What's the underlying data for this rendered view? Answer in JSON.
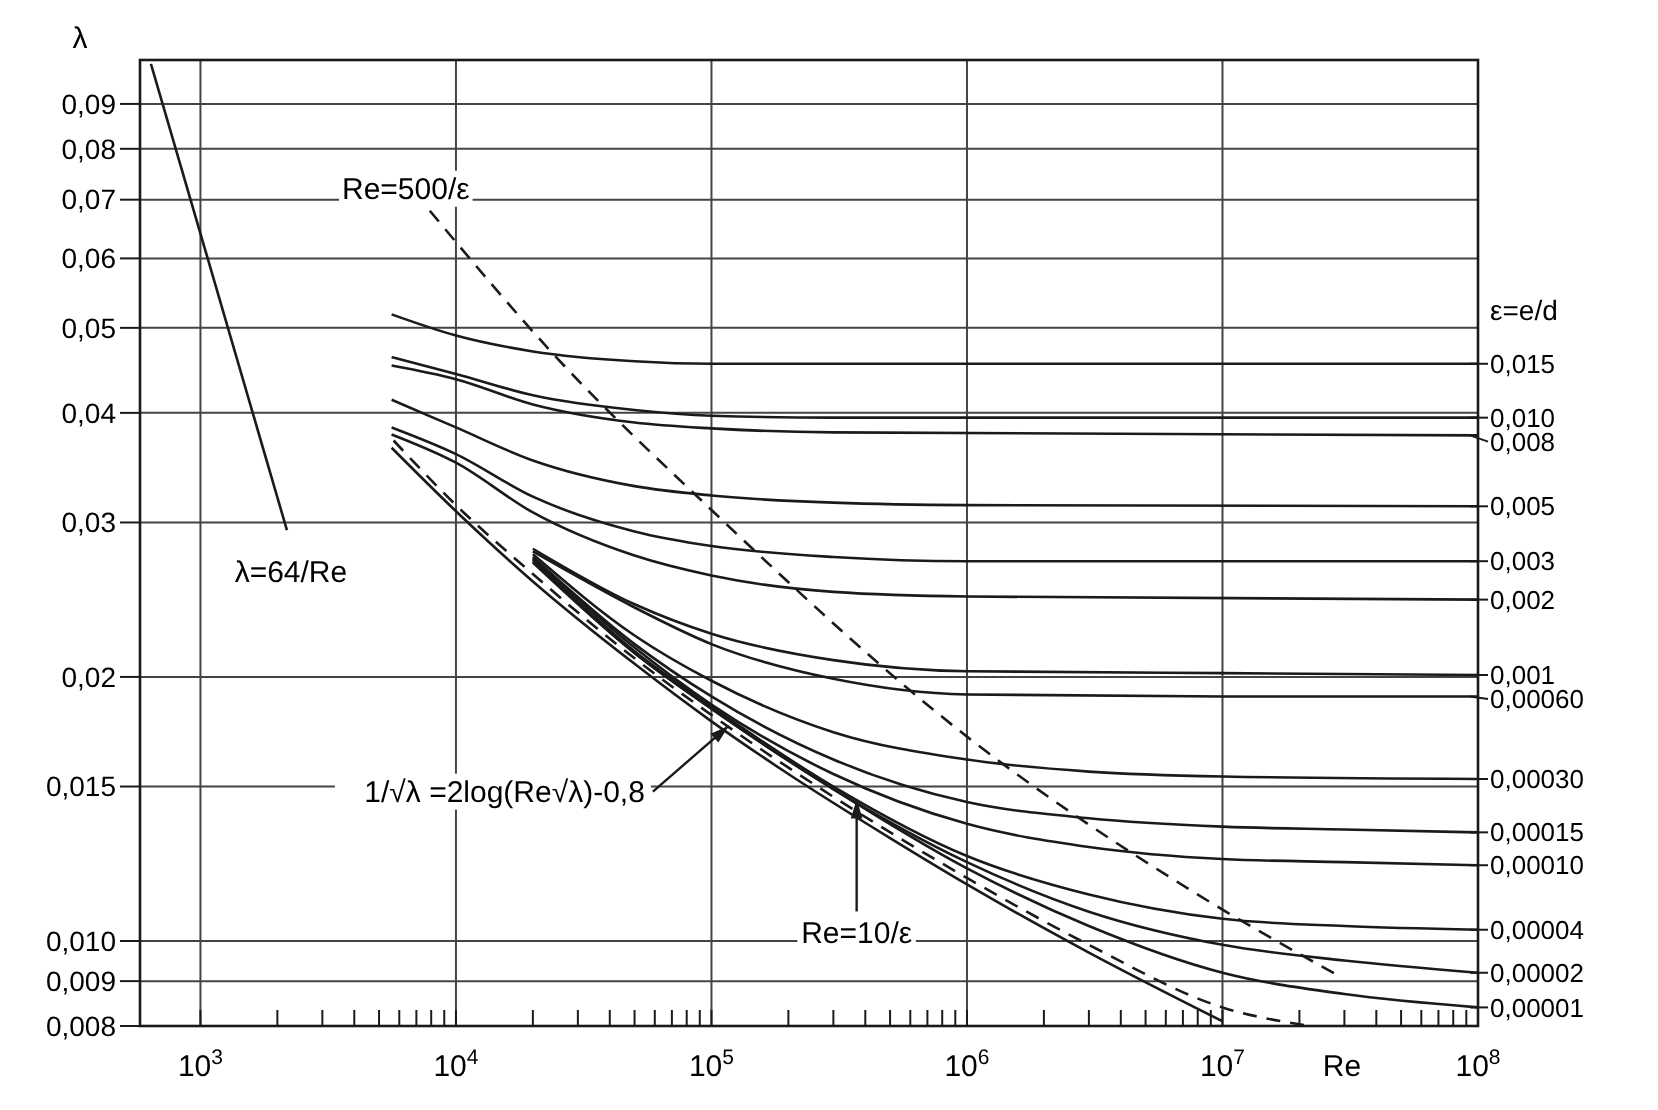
{
  "chart_data": {
    "type": "line",
    "xlabel": "Re",
    "ylabel": "λ",
    "legend_title": "ε=e/d",
    "legend": "right",
    "grid": true,
    "log": "xy",
    "xlim": [
      580,
      100000000
    ],
    "ylim": [
      0.008,
      0.101
    ],
    "xticks": [
      {
        "value": 1000,
        "label": "10$^{3}$"
      },
      {
        "value": 10000,
        "label": "10$^{4}$"
      },
      {
        "value": 100000,
        "label": "10$^{5}$"
      },
      {
        "value": 1000000,
        "label": "10$^{6}$"
      },
      {
        "value": 10000000,
        "label": "10$^{7}$"
      },
      {
        "value": 100000000,
        "label": "10$^{8}$"
      },
      {
        "value": 2000,
        "label": null
      },
      {
        "value": 3000,
        "label": null
      },
      {
        "value": 4000,
        "label": null
      },
      {
        "value": 5000,
        "label": null
      },
      {
        "value": 6000,
        "label": null
      },
      {
        "value": 7000,
        "label": null
      },
      {
        "value": 8000,
        "label": null
      },
      {
        "value": 9000,
        "label": null
      },
      {
        "value": 20000,
        "label": null
      },
      {
        "value": 30000,
        "label": null
      },
      {
        "value": 40000,
        "label": null
      },
      {
        "value": 50000,
        "label": null
      },
      {
        "value": 60000,
        "label": null
      },
      {
        "value": 70000,
        "label": null
      },
      {
        "value": 80000,
        "label": null
      },
      {
        "value": 90000,
        "label": null
      },
      {
        "value": 200000,
        "label": null
      },
      {
        "value": 300000,
        "label": null
      },
      {
        "value": 400000,
        "label": null
      },
      {
        "value": 500000,
        "label": null
      },
      {
        "value": 600000,
        "label": null
      },
      {
        "value": 700000,
        "label": null
      },
      {
        "value": 800000,
        "label": null
      },
      {
        "value": 900000,
        "label": null
      },
      {
        "value": 2000000,
        "label": null
      },
      {
        "value": 3000000,
        "label": null
      },
      {
        "value": 4000000,
        "label": null
      },
      {
        "value": 5000000,
        "label": null
      },
      {
        "value": 6000000,
        "label": null
      },
      {
        "value": 7000000,
        "label": null
      },
      {
        "value": 8000000,
        "label": null
      },
      {
        "value": 9000000,
        "label": null
      },
      {
        "value": 20000000,
        "label": null
      },
      {
        "value": 30000000,
        "label": null
      },
      {
        "value": 40000000,
        "label": null
      },
      {
        "value": 50000000,
        "label": null
      },
      {
        "value": 60000000,
        "label": null
      },
      {
        "value": 70000000,
        "label": null
      },
      {
        "value": 80000000,
        "label": null
      },
      {
        "value": 90000000,
        "label": null
      }
    ],
    "yticks": [
      {
        "value": 0.008,
        "label": "0,008"
      },
      {
        "value": 0.009,
        "label": "0,009"
      },
      {
        "value": 0.01,
        "label": "0,010"
      },
      {
        "value": 0.015,
        "label": "0,015"
      },
      {
        "value": 0.02,
        "label": "0,02"
      },
      {
        "value": 0.03,
        "label": "0,03"
      },
      {
        "value": 0.04,
        "label": "0,04"
      },
      {
        "value": 0.05,
        "label": "0,05"
      },
      {
        "value": 0.06,
        "label": "0,06"
      },
      {
        "value": 0.07,
        "label": "0,07"
      },
      {
        "value": 0.08,
        "label": "0,08"
      },
      {
        "value": 0.09,
        "label": "0,09"
      }
    ],
    "series": [
      {
        "color": "#1a1a1a",
        "line_style": "solid",
        "x": [
          640,
          2180
        ],
        "values": [
          0.1,
          0.0294
        ]
      },
      {
        "color": "#1a1a1a",
        "line_style": "dashed",
        "x": [
          7900,
          24000,
          100000,
          1000000,
          7600000,
          29000000
        ],
        "values": [
          0.068,
          0.0467,
          0.031,
          0.0171,
          0.0114,
          0.0091
        ]
      },
      {
        "name": "0,015",
        "color": "#1a1a1a",
        "x": [
          5600,
          10000,
          20000,
          50000,
          100000,
          300000,
          100000000
        ],
        "values": [
          0.0518,
          0.049,
          0.047,
          0.0458,
          0.0455,
          0.0455,
          0.0455
        ]
      },
      {
        "name": "0,010",
        "color": "#1a1a1a",
        "x": [
          5600,
          10000,
          20000,
          50000,
          100000,
          300000,
          100000000
        ],
        "values": [
          0.0463,
          0.0443,
          0.0419,
          0.0403,
          0.0397,
          0.0395,
          0.0395
        ]
      },
      {
        "name": "0,008",
        "color": "#1a1a1a",
        "x": [
          5600,
          10000,
          20000,
          50000,
          100000,
          300000,
          100000000
        ],
        "values": [
          0.0453,
          0.0437,
          0.0409,
          0.039,
          0.0384,
          0.038,
          0.0377
        ]
      },
      {
        "name": "0,005",
        "color": "#1a1a1a",
        "x": [
          5600,
          10000,
          20000,
          50000,
          100000,
          300000,
          1000000,
          100000000
        ],
        "values": [
          0.0414,
          0.0385,
          0.0353,
          0.033,
          0.0322,
          0.0316,
          0.0314,
          0.0313
        ]
      },
      {
        "name": "0,003",
        "color": "#1a1a1a",
        "x": [
          5600,
          10000,
          20000,
          50000,
          100000,
          300000,
          1000000,
          100000000
        ],
        "values": [
          0.0385,
          0.0359,
          0.0321,
          0.0293,
          0.0282,
          0.0274,
          0.0271,
          0.0271
        ]
      },
      {
        "name": "0,002",
        "color": "#1a1a1a",
        "x": [
          5600,
          10000,
          20000,
          50000,
          100000,
          300000,
          1000000,
          100000000
        ],
        "values": [
          0.0378,
          0.0351,
          0.0308,
          0.0275,
          0.0261,
          0.025,
          0.0247,
          0.0245
        ]
      },
      {
        "name": "0,001",
        "color": "#1a1a1a",
        "x": [
          20000,
          50000,
          100000,
          300000,
          1000000,
          10000000,
          100000000
        ],
        "values": [
          0.028,
          0.0242,
          0.0224,
          0.0209,
          0.0203,
          0.0202,
          0.0201
        ]
      },
      {
        "name": "0,00060",
        "color": "#1a1a1a",
        "x": [
          20000,
          50000,
          100000,
          300000,
          1000000,
          10000000,
          100000000
        ],
        "values": [
          0.0278,
          0.024,
          0.0218,
          0.0199,
          0.0191,
          0.019,
          0.019
        ]
      },
      {
        "name": "0,00030",
        "color": "#1a1a1a",
        "x": [
          20000,
          50000,
          100000,
          300000,
          1000000,
          3000000,
          10000000,
          100000000
        ],
        "values": [
          0.0276,
          0.0223,
          0.0198,
          0.0173,
          0.0161,
          0.0156,
          0.0154,
          0.0153
        ]
      },
      {
        "name": "0,00015",
        "color": "#1a1a1a",
        "x": [
          20000,
          50000,
          100000,
          300000,
          1000000,
          3000000,
          10000000,
          30000000,
          100000000
        ],
        "values": [
          0.0274,
          0.0218,
          0.019,
          0.0161,
          0.0144,
          0.0138,
          0.0135,
          0.0134,
          0.0133
        ]
      },
      {
        "name": "0,00010",
        "color": "#1a1a1a",
        "x": [
          20000,
          50000,
          100000,
          300000,
          1000000,
          3000000,
          10000000,
          30000000,
          100000000
        ],
        "values": [
          0.0273,
          0.0216,
          0.0186,
          0.0155,
          0.0136,
          0.0128,
          0.0124,
          0.0123,
          0.0122
        ]
      },
      {
        "name": "0,00004",
        "color": "#1a1a1a",
        "x": [
          20000,
          50000,
          100000,
          300000,
          1000000,
          3000000,
          10000000,
          30000000,
          100000000
        ],
        "values": [
          0.0272,
          0.0214,
          0.0185,
          0.015,
          0.0125,
          0.0113,
          0.0106,
          0.0104,
          0.0103
        ]
      },
      {
        "name": "0,00002",
        "color": "#1a1a1a",
        "x": [
          20000,
          50000,
          100000,
          300000,
          1000000,
          3000000,
          10000000,
          30000000,
          100000000
        ],
        "values": [
          0.0271,
          0.0213,
          0.0184,
          0.0149,
          0.0123,
          0.0108,
          0.0099,
          0.0095,
          0.0092
        ]
      },
      {
        "name": "0,00001",
        "color": "#1a1a1a",
        "x": [
          20000,
          50000,
          100000,
          300000,
          1000000,
          3000000,
          10000000,
          30000000,
          100000000
        ],
        "values": [
          0.027,
          0.0213,
          0.0184,
          0.0149,
          0.0121,
          0.0104,
          0.0092,
          0.0087,
          0.0084
        ]
      },
      {
        "color": "#1a1a1a",
        "line_style": "solid",
        "x": [
          5600,
          10000,
          20000,
          50000,
          100000,
          200000,
          500000,
          1000000,
          3000000,
          10000000
        ],
        "values": [
          0.0365,
          0.0309,
          0.0257,
          0.0207,
          0.0178,
          0.0155,
          0.0131,
          0.0116,
          0.0097,
          0.0081
        ]
      },
      {
        "color": "#1a1a1a",
        "line_style": "dashed",
        "x": [
          5700,
          10000,
          20000,
          50000,
          100000,
          300000,
          1000000,
          3000000,
          10000000,
          22000000
        ],
        "values": [
          0.0372,
          0.0314,
          0.0262,
          0.021,
          0.0181,
          0.0146,
          0.0118,
          0.0099,
          0.0084,
          0.008
        ]
      }
    ],
    "annotations": [
      {
        "text": "Re=500/ε",
        "x": 7900,
        "y": 0.068
      },
      {
        "text": "λ=64/Re",
        "x": 2180,
        "y": 0.0294
      },
      {
        "text": "1/√λ =2log(Re√λ)-0,8",
        "x": 117000,
        "y": 0.0176
      },
      {
        "text": "Re=10/ε",
        "x": 370000,
        "y": 0.0145
      }
    ]
  }
}
